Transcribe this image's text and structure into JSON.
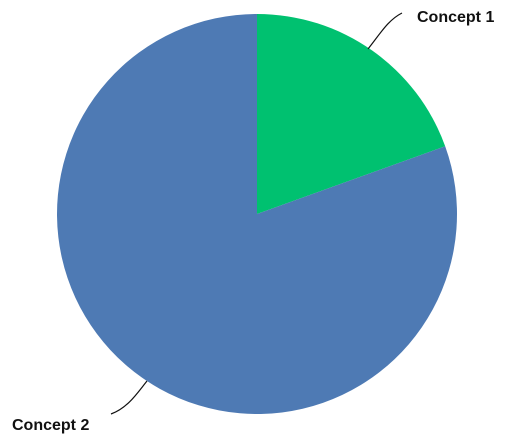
{
  "chart_data": {
    "type": "pie",
    "slices": [
      {
        "label": "Concept 1",
        "value": 19.5,
        "color": "#00c170"
      },
      {
        "label": "Concept 2",
        "value": 80.5,
        "color": "#4e7ab4"
      }
    ],
    "title": "",
    "start_angle": "12 o'clock",
    "direction": "clockwise",
    "label_style": "outside with leader lines",
    "legend": "none"
  }
}
